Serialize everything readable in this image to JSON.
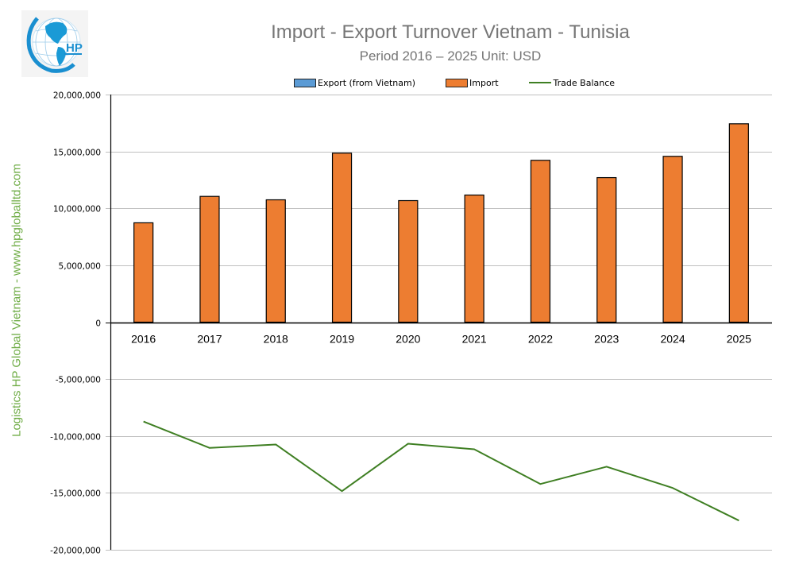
{
  "header": {
    "title": "Import - Export Turnover Vietnam - Tunisia",
    "subtitle": "Period 2016 – 2025  Unit: USD",
    "logo_text": "HP",
    "watermark": "Logistics HP Global Vietnam - www.hpgloballtd.com"
  },
  "legend": {
    "export_label": "Export (from Vietnam)",
    "import_label": "Import",
    "balance_label": "Trade Balance"
  },
  "colors": {
    "export": "#5b9bd5",
    "import": "#ed7d31",
    "balance": "#3f7f23",
    "gridline": "#bfbfbf",
    "title": "#767676",
    "watermark": "#70ad47"
  },
  "chart_data": {
    "type": "bar",
    "title": "Import - Export Turnover Vietnam - Tunisia",
    "subtitle": "Period 2016 – 2025  Unit: USD",
    "xlabel": "",
    "ylabel": "",
    "ylim": [
      -20000000,
      20000000
    ],
    "yticks": [
      20000000,
      15000000,
      10000000,
      5000000,
      0,
      -5000000,
      -10000000,
      -15000000,
      -20000000
    ],
    "ytick_labels": [
      "20,000,000",
      "15,000,000",
      "10,000,000",
      "5,000,000",
      "0",
      "-5,000,000",
      "-10,000,000",
      "-15,000,000",
      "-20,000,000"
    ],
    "grid": true,
    "legend_position": "top",
    "categories": [
      "2016",
      "2017",
      "2018",
      "2019",
      "2020",
      "2021",
      "2022",
      "2023",
      "2024",
      "2025"
    ],
    "series": [
      {
        "name": "Export (from Vietnam)",
        "type": "bar",
        "values": [
          0,
          0,
          0,
          0,
          0,
          0,
          0,
          0,
          0,
          0
        ]
      },
      {
        "name": "Import",
        "type": "bar",
        "values": [
          8730000,
          11050000,
          10750000,
          14850000,
          10680000,
          11170000,
          14220000,
          12700000,
          14570000,
          17430000
        ]
      },
      {
        "name": "Trade Balance",
        "type": "line",
        "values": [
          -8730000,
          -11050000,
          -10750000,
          -14850000,
          -10680000,
          -11170000,
          -14220000,
          -12700000,
          -14570000,
          -17430000
        ]
      }
    ]
  }
}
